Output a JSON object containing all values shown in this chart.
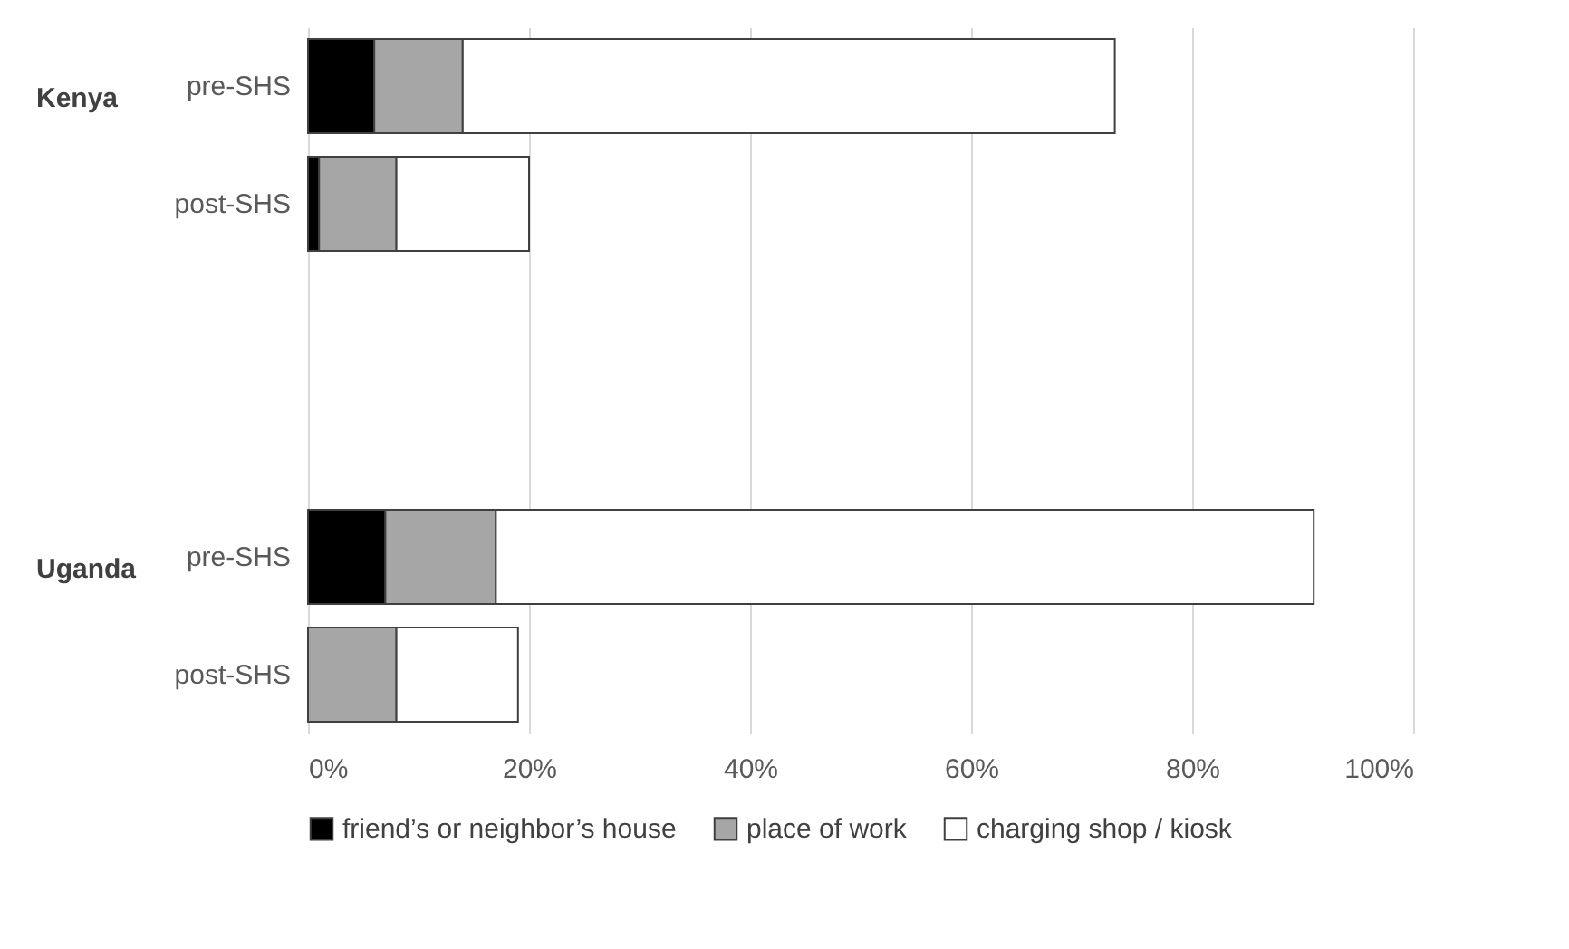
{
  "chart_data": {
    "type": "bar",
    "orientation": "horizontal",
    "stacked": true,
    "categories": [
      "pre-SHS",
      "post-SHS",
      null,
      null,
      "pre-SHS",
      "post-SHS"
    ],
    "series": [
      {
        "name": "friend’s or neighbor’s house",
        "color": "#000000",
        "values": [
          6,
          1,
          null,
          null,
          7,
          0
        ]
      },
      {
        "name": "place of work",
        "color": "#a6a6a6",
        "values": [
          8,
          7,
          null,
          null,
          10,
          8
        ]
      },
      {
        "name": "charging shop / kiosk",
        "color": "#ffffff",
        "values": [
          59,
          12,
          null,
          null,
          74,
          11
        ]
      }
    ],
    "annotations": [
      "Kenya",
      "Uganda"
    ],
    "xlim": [
      0,
      100
    ],
    "xticks": [
      {
        "value": 0,
        "label": "0%"
      },
      {
        "value": 20,
        "label": "20%"
      },
      {
        "value": 40,
        "label": "40%"
      },
      {
        "value": 60,
        "label": "60%"
      },
      {
        "value": 80,
        "label": "80%"
      },
      {
        "value": 100,
        "label": "100%"
      }
    ],
    "grid": "x",
    "legend": "bottom"
  }
}
